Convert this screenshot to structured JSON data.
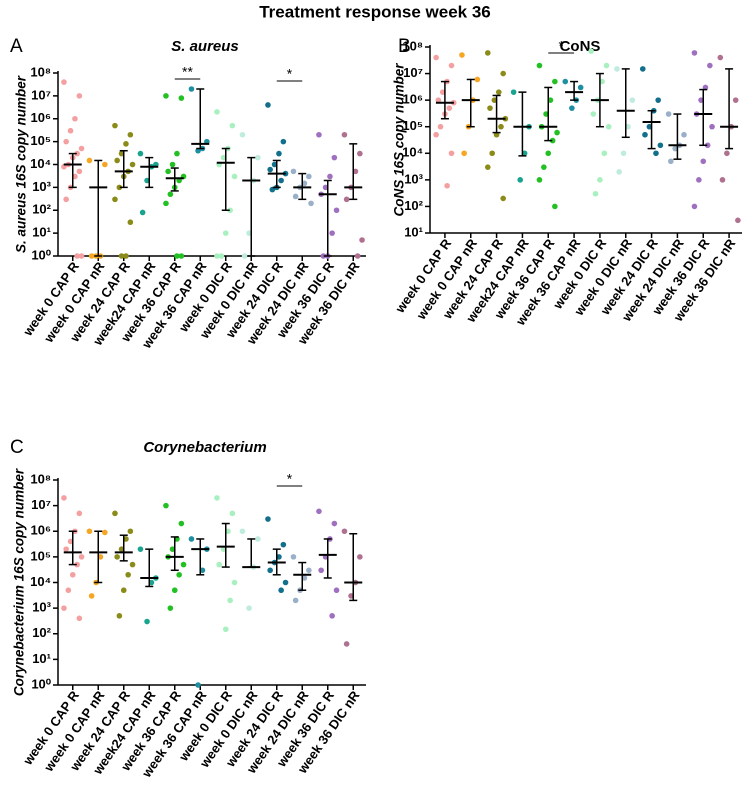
{
  "title": "Treatment response week 36",
  "chart_data": [
    {
      "type": "dotplot",
      "panel": "A",
      "title": "S. aureus",
      "ylabel": "S. aureus 16S copy number",
      "log_scale": true,
      "categories": [
        "week 0 CAP R",
        "week 0 CAP nR",
        "week 24 CAP R",
        "week24 CAP nR",
        "week 36 CAP R",
        "week 36 CAP nR",
        "week 0 DIC R",
        "week 0 DIC nR",
        "week 24 DIC R",
        "week 24 DIC nR",
        "week 36 DIC R",
        "week 36 DIC nR"
      ],
      "ylim": [
        1,
        100000000.0
      ],
      "yticks": [
        {
          "value": 1,
          "label": "10⁰"
        },
        {
          "value": 10,
          "label": "10¹"
        },
        {
          "value": 100,
          "label": "10²"
        },
        {
          "value": 1000,
          "label": "10³"
        },
        {
          "value": 10000,
          "label": "10⁴"
        },
        {
          "value": 100000,
          "label": "10⁵"
        },
        {
          "value": 1000000,
          "label": "10⁶"
        },
        {
          "value": 10000000,
          "label": "10⁷"
        },
        {
          "value": 100000000,
          "label": "10⁸"
        }
      ],
      "groups": [
        {
          "color": "#f4a0a0",
          "median": 10000.0,
          "q1": 1000.0,
          "q3": 30000.0,
          "points": [
            40000000.0,
            10000000.0,
            1000000.0,
            300000.0,
            100000.0,
            50000.0,
            30000.0,
            20000.0,
            10000.0,
            8000.0,
            5000.0,
            3000.0,
            1000.0,
            300,
            1,
            1
          ]
        },
        {
          "color": "#f5a623",
          "median": 1000.0,
          "q1": 1,
          "q3": 15000.0,
          "points": [
            15000.0,
            10000.0,
            1,
            1,
            1
          ]
        },
        {
          "color": "#8b8b1a",
          "median": 5000.0,
          "q1": 1000.0,
          "q3": 40000.0,
          "points": [
            500000.0,
            200000.0,
            80000.0,
            30000.0,
            15000.0,
            10000.0,
            5000.0,
            3000.0,
            1000.0,
            300,
            30,
            1,
            1
          ]
        },
        {
          "color": "#1aa38f",
          "median": 8000.0,
          "q1": 1000.0,
          "q3": 20000.0,
          "points": [
            30000.0,
            10000.0,
            8000.0,
            2000.0,
            80
          ]
        },
        {
          "color": "#22c022",
          "median": 2500.0,
          "q1": 700,
          "q3": 7000.0,
          "points": [
            10000000.0,
            8000000.0,
            30000.0,
            10000.0,
            5000.0,
            3000.0,
            2000.0,
            1000.0,
            500,
            200,
            1,
            1
          ]
        },
        {
          "color": "#1e8fa0",
          "median": 80000.0,
          "q1": 50000.0,
          "q3": 20000000.0,
          "points": [
            20000000.0,
            100000.0,
            50000.0,
            40000.0
          ]
        },
        {
          "color": "#a8f0c0",
          "median": 12000.0,
          "q1": 100,
          "q3": 50000.0,
          "points": [
            2000000.0,
            500000.0,
            50000.0,
            20000.0,
            10000.0,
            3000.0,
            100,
            10,
            1,
            1
          ]
        },
        {
          "color": "#c0ece0",
          "median": 2000.0,
          "q1": 1,
          "q3": 20000.0,
          "points": [
            200000.0,
            20000.0,
            2000.0,
            10,
            1
          ]
        },
        {
          "color": "#13708c",
          "median": 4000.0,
          "q1": 1000.0,
          "q3": 15000.0,
          "points": [
            4000000.0,
            100000.0,
            30000.0,
            10000.0,
            6000.0,
            4000.0,
            2000.0,
            1000.0,
            800
          ]
        },
        {
          "color": "#9ab0c8",
          "median": 1000.0,
          "q1": 300,
          "q3": 4000.0,
          "points": [
            5000.0,
            3000.0,
            1500.0,
            1000.0,
            400,
            200
          ]
        },
        {
          "color": "#a070c0",
          "median": 500,
          "q1": 1,
          "q3": 2000.0,
          "points": [
            200000.0,
            20000.0,
            3000.0,
            1000.0,
            500,
            100,
            10,
            1,
            1
          ]
        },
        {
          "color": "#b07090",
          "median": 1000.0,
          "q1": 300,
          "q3": 80000.0,
          "points": [
            200000.0,
            30000.0,
            5000.0,
            1000.0,
            300,
            5,
            1
          ]
        }
      ],
      "annotations": [
        {
          "text": "**",
          "from": 4,
          "to": 5
        },
        {
          "text": "*",
          "from": 8,
          "to": 9
        }
      ]
    },
    {
      "type": "dotplot",
      "panel": "B",
      "title": "CoNS",
      "ylabel": "CoNS 16S copy number",
      "log_scale": true,
      "categories": [
        "week 0 CAP R",
        "week 0 CAP nR",
        "week 24 CAP R",
        "week24 CAP nR",
        "week 36 CAP R",
        "week 36 CAP nR",
        "week 0 DIC R",
        "week 0 DIC nR",
        "week 24 DIC R",
        "week 24 DIC nR",
        "week 36 DIC R",
        "week 36 DIC nR"
      ],
      "ylim": [
        10,
        100000000.0
      ],
      "yticks": [
        {
          "value": 10,
          "label": "10¹"
        },
        {
          "value": 100,
          "label": "10²"
        },
        {
          "value": 1000,
          "label": "10³"
        },
        {
          "value": 10000,
          "label": "10⁴"
        },
        {
          "value": 100000,
          "label": "10⁵"
        },
        {
          "value": 1000000,
          "label": "10⁶"
        },
        {
          "value": 10000000,
          "label": "10⁷"
        },
        {
          "value": 100000000,
          "label": "10⁸"
        }
      ],
      "groups": [
        {
          "color": "#f4a0a0",
          "median": 800000.0,
          "q1": 200000.0,
          "q3": 5000000.0,
          "points": [
            40000000.0,
            20000000.0,
            5000000.0,
            2000000.0,
            1000000.0,
            800000.0,
            500000.0,
            300000.0,
            100000.0,
            50000.0,
            10000.0,
            600
          ]
        },
        {
          "color": "#f5a623",
          "median": 1000000.0,
          "q1": 100000.0,
          "q3": 6000000.0,
          "points": [
            50000000.0,
            6000000.0,
            1000000.0,
            100000.0,
            10000.0
          ]
        },
        {
          "color": "#8b8b1a",
          "median": 200000.0,
          "q1": 60000.0,
          "q3": 1500000.0,
          "points": [
            60000000.0,
            10000000.0,
            2000000.0,
            1000000.0,
            500000.0,
            200000.0,
            100000.0,
            50000.0,
            10000.0,
            3000.0,
            200
          ]
        },
        {
          "color": "#1aa38f",
          "median": 100000.0,
          "q1": 8000.0,
          "q3": 2000000.0,
          "points": [
            2000000.0,
            100000.0,
            10000.0,
            1000.0
          ]
        },
        {
          "color": "#22c022",
          "median": 100000.0,
          "q1": 30000.0,
          "q3": 3000000.0,
          "points": [
            20000000.0,
            5000000.0,
            1000000.0,
            300000.0,
            100000.0,
            60000.0,
            30000.0,
            10000.0,
            3000.0,
            1000.0,
            100
          ]
        },
        {
          "color": "#1e8fa0",
          "median": 2000000.0,
          "q1": 1000000.0,
          "q3": 5000000.0,
          "points": [
            5000000.0,
            3000000.0,
            1000000.0,
            500000.0
          ]
        },
        {
          "color": "#a8f0c0",
          "median": 1000000.0,
          "q1": 100000.0,
          "q3": 10000000.0,
          "points": [
            70000000.0,
            20000000.0,
            5000000.0,
            1000000.0,
            300000.0,
            100000.0,
            10000.0,
            1000.0,
            300
          ]
        },
        {
          "color": "#c0ece0",
          "median": 400000.0,
          "q1": 40000.0,
          "q3": 15000000.0,
          "points": [
            15000000.0,
            1000000.0,
            100000.0,
            10000.0,
            2000.0
          ]
        },
        {
          "color": "#13708c",
          "median": 150000.0,
          "q1": 15000.0,
          "q3": 400000.0,
          "points": [
            15000000.0,
            1000000.0,
            400000.0,
            100000.0,
            50000.0,
            20000.0,
            10000.0
          ]
        },
        {
          "color": "#9ab0c8",
          "median": 20000.0,
          "q1": 6000.0,
          "q3": 300000.0,
          "points": [
            300000.0,
            50000.0,
            20000.0,
            15000.0,
            5000.0
          ]
        },
        {
          "color": "#a070c0",
          "median": 300000.0,
          "q1": 20000.0,
          "q3": 2500000.0,
          "points": [
            60000000.0,
            20000000.0,
            3000000.0,
            1000000.0,
            300000.0,
            100000.0,
            20000.0,
            5000.0,
            1000.0,
            100
          ]
        },
        {
          "color": "#b07090",
          "median": 100000.0,
          "q1": 15000.0,
          "q3": 15000000.0,
          "points": [
            40000000.0,
            1000000.0,
            100000.0,
            10000.0,
            1000.0,
            30
          ]
        }
      ],
      "annotations": [
        {
          "text": "*",
          "from": 4,
          "to": 5
        }
      ]
    },
    {
      "type": "dotplot",
      "panel": "C",
      "title": "Corynebacterium",
      "ylabel": "Corynebacterium 16S copy number",
      "log_scale": true,
      "categories": [
        "week 0 CAP R",
        "week 0 CAP nR",
        "week 24 CAP R",
        "week24 CAP nR",
        "week 36 CAP R",
        "week 36 CAP nR",
        "week 0 DIC R",
        "week 0 DIC nR",
        "week 24 DIC R",
        "week 24 DIC nR",
        "week 36 DIC R",
        "week 36 DIC nR"
      ],
      "ylim": [
        1,
        100000000.0
      ],
      "yticks": [
        {
          "value": 1,
          "label": "10⁰"
        },
        {
          "value": 10,
          "label": "10¹"
        },
        {
          "value": 100,
          "label": "10²"
        },
        {
          "value": 1000,
          "label": "10³"
        },
        {
          "value": 10000,
          "label": "10⁴"
        },
        {
          "value": 100000,
          "label": "10⁵"
        },
        {
          "value": 1000000,
          "label": "10⁶"
        },
        {
          "value": 10000000,
          "label": "10⁷"
        },
        {
          "value": 100000000,
          "label": "10⁸"
        }
      ],
      "groups": [
        {
          "color": "#f4a0a0",
          "median": 150000.0,
          "q1": 50000.0,
          "q3": 1000000.0,
          "points": [
            20000000.0,
            5000000.0,
            1000000.0,
            400000.0,
            200000.0,
            100000.0,
            50000.0,
            20000.0,
            5000.0,
            1000.0,
            400
          ]
        },
        {
          "color": "#f5a623",
          "median": 150000.0,
          "q1": 10000.0,
          "q3": 1000000.0,
          "points": [
            1000000.0,
            900000.0,
            100000.0,
            10000.0,
            3000.0
          ]
        },
        {
          "color": "#8b8b1a",
          "median": 150000.0,
          "q1": 70000.0,
          "q3": 700000.0,
          "points": [
            5000000.0,
            1000000.0,
            500000.0,
            200000.0,
            100000.0,
            50000.0,
            20000.0,
            5000.0,
            500
          ]
        },
        {
          "color": "#1aa38f",
          "median": 15000.0,
          "q1": 7000.0,
          "q3": 200000.0,
          "points": [
            200000.0,
            15000.0,
            10000.0,
            300
          ]
        },
        {
          "color": "#22c022",
          "median": 100000.0,
          "q1": 30000.0,
          "q3": 600000.0,
          "points": [
            10000000.0,
            2000000.0,
            500000.0,
            200000.0,
            100000.0,
            50000.0,
            20000.0,
            5000.0,
            1000.0
          ]
        },
        {
          "color": "#1e8fa0",
          "median": 200000.0,
          "q1": 20000.0,
          "q3": 500000.0,
          "points": [
            500000.0,
            200000.0,
            30000.0,
            1
          ]
        },
        {
          "color": "#a8f0c0",
          "median": 250000.0,
          "q1": 40000.0,
          "q3": 2000000.0,
          "points": [
            20000000.0,
            5000000.0,
            1000000.0,
            200000.0,
            50000.0,
            10000.0,
            2000.0,
            150
          ]
        },
        {
          "color": "#c0ece0",
          "median": 40000.0,
          "q1": 40000.0,
          "q3": 500000.0,
          "points": [
            1000000.0,
            500000.0,
            40000.0,
            1000.0
          ]
        },
        {
          "color": "#13708c",
          "median": 60000.0,
          "q1": 20000.0,
          "q3": 200000.0,
          "points": [
            3000000.0,
            300000.0,
            100000.0,
            60000.0,
            30000.0,
            10000.0,
            5000.0
          ]
        },
        {
          "color": "#9ab0c8",
          "median": 20000.0,
          "q1": 5000.0,
          "q3": 60000.0,
          "points": [
            100000.0,
            30000.0,
            15000.0,
            5000.0,
            2000.0
          ]
        },
        {
          "color": "#a070c0",
          "median": 120000.0,
          "q1": 15000.0,
          "q3": 500000.0,
          "points": [
            6000000.0,
            2000000.0,
            500000.0,
            100000.0,
            30000.0,
            5000.0,
            500
          ]
        },
        {
          "color": "#b07090",
          "median": 10000.0,
          "q1": 2000.0,
          "q3": 800000.0,
          "points": [
            1000000.0,
            100000.0,
            10000.0,
            3000.0,
            40
          ]
        }
      ],
      "annotations": [
        {
          "text": "*",
          "from": 8,
          "to": 9
        }
      ]
    }
  ]
}
